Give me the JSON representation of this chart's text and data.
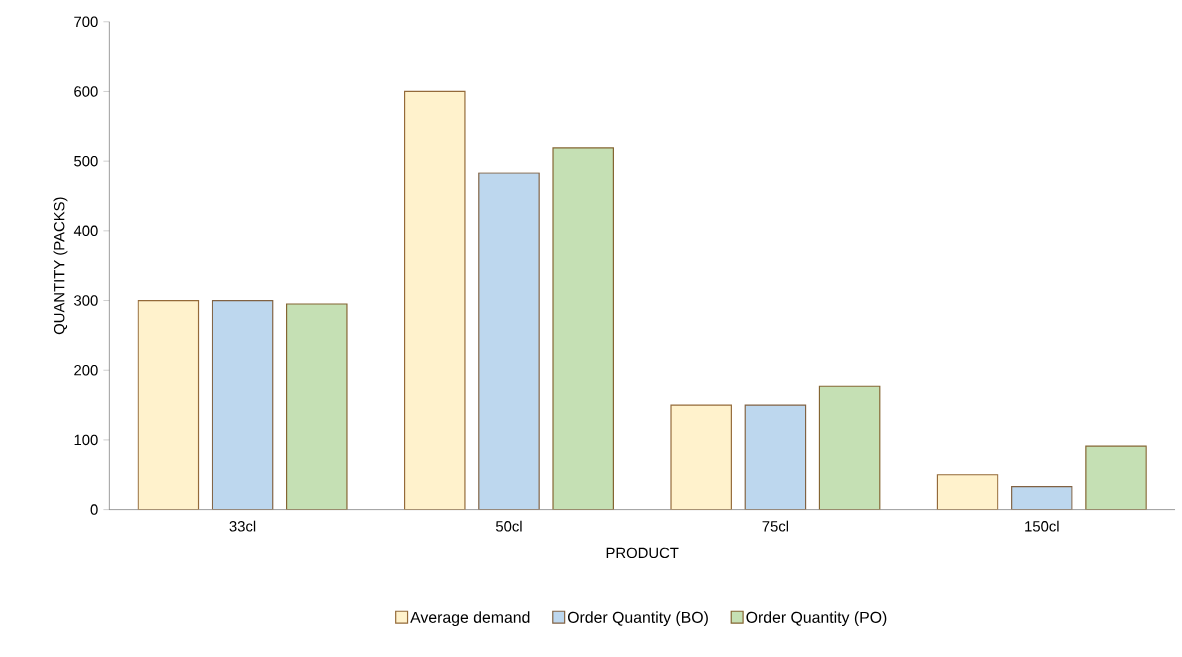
{
  "chart_data": {
    "type": "bar",
    "xlabel": "PRODUCT",
    "ylabel": "QUANTITY (PACKS)",
    "categories": [
      "33cl",
      "50cl",
      "75cl",
      "150cl"
    ],
    "series": [
      {
        "name": "Average demand",
        "color": "#fff2cc",
        "values": [
          300,
          600,
          150,
          50
        ]
      },
      {
        "name": "Order Quantity (BO)",
        "color": "#bdd7ee",
        "values": [
          300,
          483,
          150,
          33
        ]
      },
      {
        "name": "Order Quantity (PO)",
        "color": "#c5e0b4",
        "values": [
          295,
          519,
          177,
          91
        ]
      }
    ],
    "ylim": [
      0,
      700
    ],
    "yticks": [
      0,
      100,
      200,
      300,
      400,
      500,
      600,
      700
    ],
    "grid": false,
    "legend": "bottom"
  }
}
